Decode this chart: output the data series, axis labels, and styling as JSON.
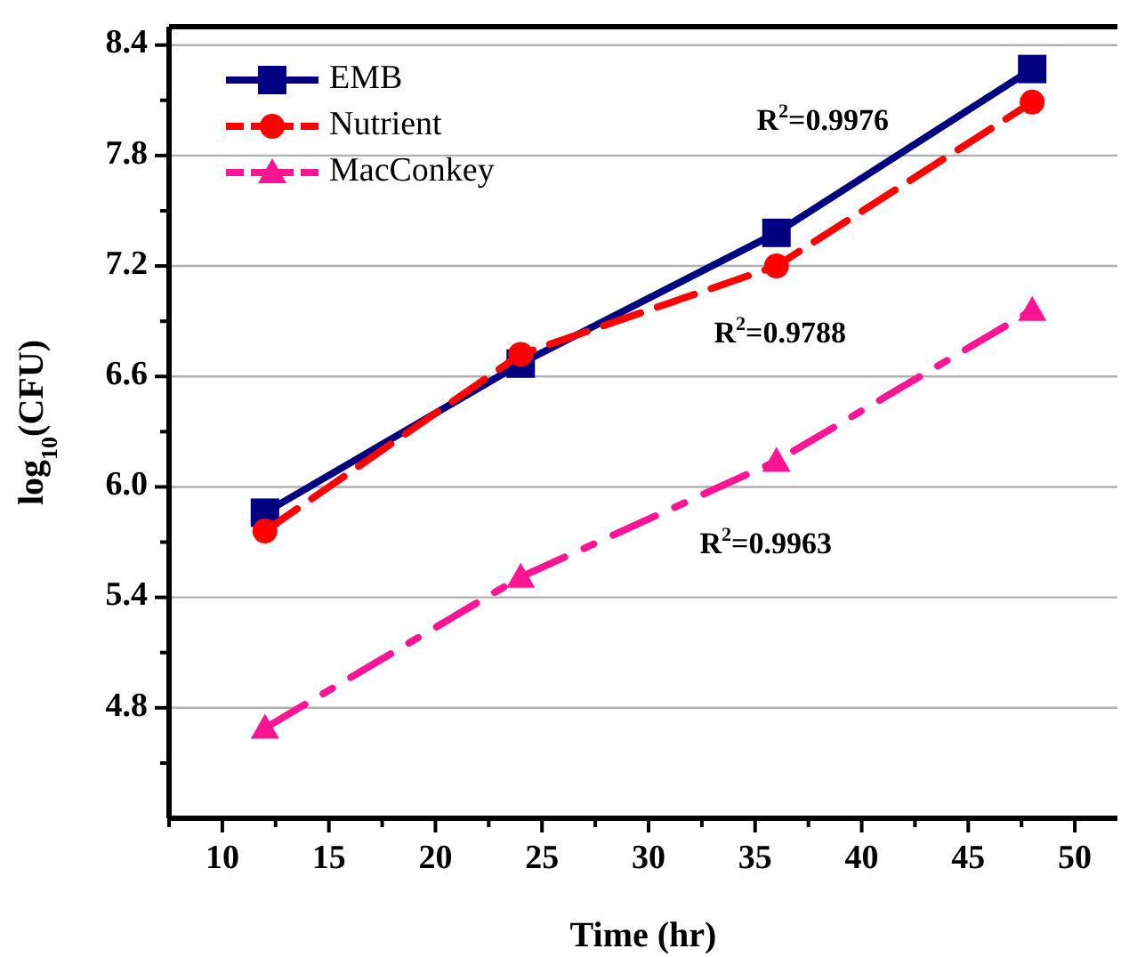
{
  "chart_data": {
    "type": "line",
    "xlabel": "Time (hr)",
    "ylabel": "log$_{10}$(CFU)",
    "x": [
      12,
      24,
      36,
      48
    ],
    "xlim": [
      7.5,
      52
    ],
    "xticks": [
      10,
      15,
      20,
      25,
      30,
      35,
      40,
      45,
      50
    ],
    "ylim": [
      4.2,
      8.5
    ],
    "yticks": [
      4.8,
      5.4,
      {
        "value": 6,
        "label": "6.0"
      },
      6.6,
      7.2,
      7.8,
      8.4
    ],
    "grid": "y",
    "legend": "top left",
    "series": [
      {
        "name": "EMB",
        "color": "#000080",
        "values": [
          5.86,
          6.67,
          7.38,
          8.27
        ],
        "marker": "square",
        "line_style": "solid"
      },
      {
        "name": "Nutrient",
        "color": "#ff0000",
        "values": [
          5.76,
          6.72,
          7.2,
          8.09
        ],
        "marker": "circle",
        "line_style": "dashed"
      },
      {
        "name": "MacConkey",
        "color": "#ff1493",
        "values": [
          4.69,
          5.51,
          6.14,
          6.96
        ],
        "marker": "triangle",
        "line_style": "dashdot"
      }
    ],
    "annotations": [
      "R$^{2}$=0.9976",
      "R$^{2}$=0.9788",
      "R$^{2}$=0.9963"
    ]
  }
}
